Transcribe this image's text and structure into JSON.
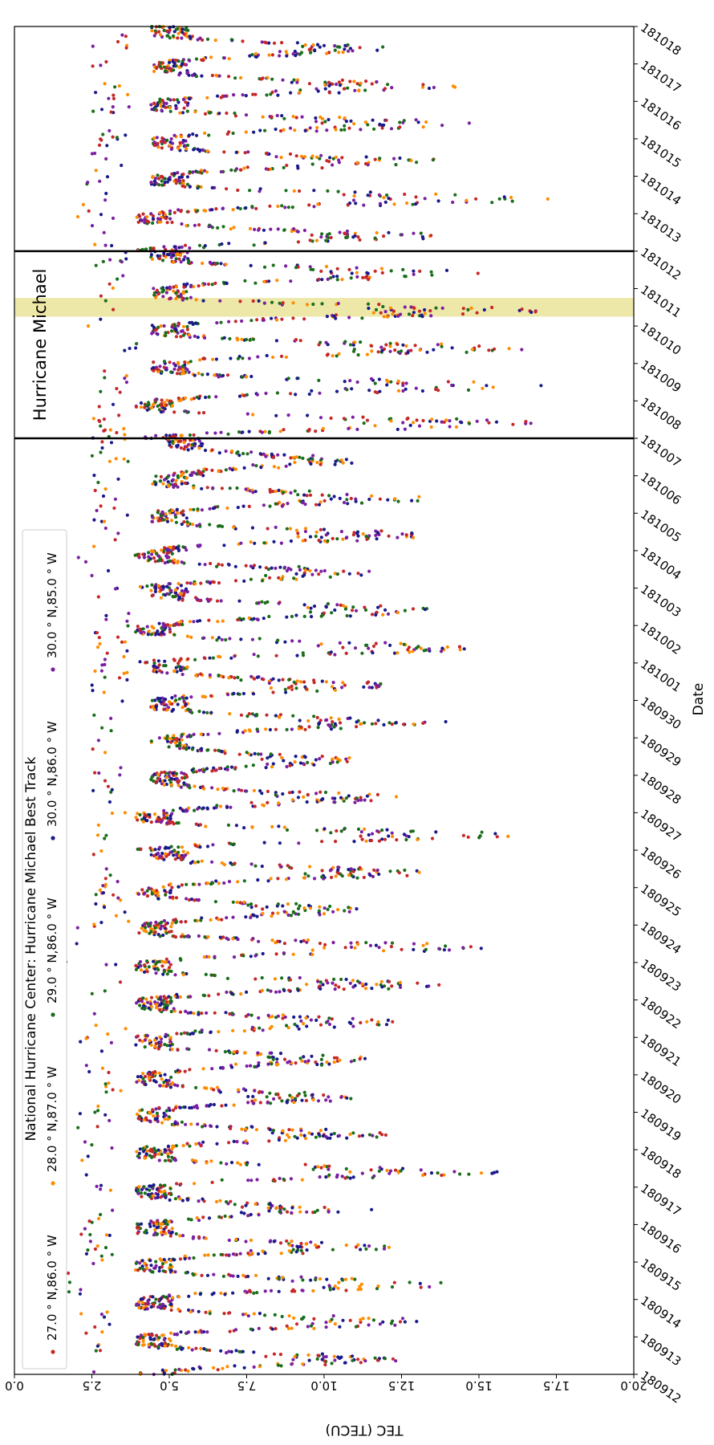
{
  "chart_data": {
    "type": "scatter",
    "title": "",
    "xlabel": "TEC (TECU)",
    "ylabel": "Date",
    "xlim": [
      20.0,
      0.0
    ],
    "x_ticks": [
      {
        "value": 20.0,
        "label": "20.0"
      },
      {
        "value": 17.5,
        "label": "17.5"
      },
      {
        "value": 15.0,
        "label": "15.0"
      },
      {
        "value": 12.5,
        "label": "12.5"
      },
      {
        "value": 10.0,
        "label": "10.0"
      },
      {
        "value": 7.5,
        "label": "7.5"
      },
      {
        "value": 5.0,
        "label": "5.0"
      },
      {
        "value": 2.5,
        "label": "2.5"
      },
      {
        "value": 0.0,
        "label": "0.0"
      }
    ],
    "y_ticks": [
      "180912",
      "180913",
      "180914",
      "180915",
      "180916",
      "180917",
      "180918",
      "180919",
      "180920",
      "180921",
      "180922",
      "180923",
      "180924",
      "180925",
      "180926",
      "180927",
      "180928",
      "180929",
      "180930",
      "181001",
      "181002",
      "181003",
      "181004",
      "181005",
      "181006",
      "181007",
      "181008",
      "181009",
      "181010",
      "181011",
      "181012",
      "181013",
      "181014",
      "181015",
      "181016",
      "181017",
      "181018"
    ],
    "legend": {
      "title": "National Hurricane Center: Hurricane Michael Best Track",
      "placement": "upper-left"
    },
    "series": [
      {
        "name": "27.0$^\\circ$N,86.0$^\\circ$W",
        "label": "27.0 ° N,86.0 ° W",
        "color": "#c62828"
      },
      {
        "name": "28.0$^\\circ$N,87.0$^\\circ$W",
        "label": "28.0 ° N,87.0 ° W",
        "color": "#ff8c00"
      },
      {
        "name": "29.0$^\\circ$N,86.0$^\\circ$W",
        "label": "29.0 ° N,86.0 ° W",
        "color": "#1b6e1b"
      },
      {
        "name": "30.0$^\\circ$N,86.0$^\\circ$W",
        "label": "30.0 ° N,86.0 ° W",
        "color": "#1a1a8c"
      },
      {
        "name": "30.0$^\\circ$N,85.0$^\\circ$W",
        "label": "30.0 ° N,85.0 ° W",
        "color": "#7b1fa2"
      }
    ],
    "daily_profile": {
      "days": [
        "180912",
        "180913",
        "180914",
        "180915",
        "180916",
        "180917",
        "180918",
        "180919",
        "180920",
        "180921",
        "180922",
        "180923",
        "180924",
        "180925",
        "180926",
        "180927",
        "180928",
        "180929",
        "180930",
        "181001",
        "181002",
        "181003",
        "181004",
        "181005",
        "181006",
        "181007",
        "181008",
        "181009",
        "181010",
        "181011",
        "181012",
        "181013",
        "181014",
        "181015",
        "181016",
        "181017"
      ],
      "peak_tec": [
        12.5,
        13.5,
        14.5,
        12.0,
        11.0,
        15.5,
        12.0,
        11.0,
        11.5,
        12.5,
        13.5,
        15.0,
        11.5,
        13.5,
        16.0,
        12.5,
        11.0,
        13.5,
        12.0,
        15.0,
        14.0,
        12.0,
        13.5,
        13.5,
        11.0,
        17.0,
        17.0,
        16.5,
        17.0,
        15.0,
        14.0,
        17.0,
        13.5,
        14.5,
        14.0,
        12.0
      ],
      "min_tec": [
        2.5,
        2.0,
        1.5,
        2.0,
        2.0,
        2.0,
        2.0,
        2.5,
        2.0,
        2.5,
        2.5,
        1.5,
        2.5,
        2.5,
        2.0,
        2.5,
        2.5,
        2.5,
        2.5,
        2.5,
        2.5,
        2.0,
        2.5,
        2.5,
        2.5,
        2.5,
        2.5,
        3.0,
        2.0,
        2.5,
        2.0,
        2.0,
        2.5,
        2.5,
        2.5,
        2.5
      ],
      "base_tec": [
        4.5,
        4.5,
        4.5,
        4.5,
        4.5,
        4.5,
        4.5,
        4.5,
        4.5,
        4.5,
        4.5,
        4.5,
        4.5,
        5.0,
        4.5,
        5.0,
        5.0,
        5.0,
        5.0,
        4.5,
        5.0,
        4.5,
        5.0,
        5.0,
        5.5,
        4.5,
        5.0,
        5.0,
        5.0,
        5.0,
        4.5,
        5.0,
        5.0,
        5.0,
        5.0,
        5.0
      ]
    },
    "annotations": [
      {
        "text": "Hurricane Michael",
        "from": "181007",
        "to": "181012"
      }
    ],
    "highlight": {
      "from": "181010",
      "to": "181011",
      "color": "#ede8a8"
    },
    "vertical_separators": [
      "181007",
      "181012"
    ],
    "grid": false
  }
}
